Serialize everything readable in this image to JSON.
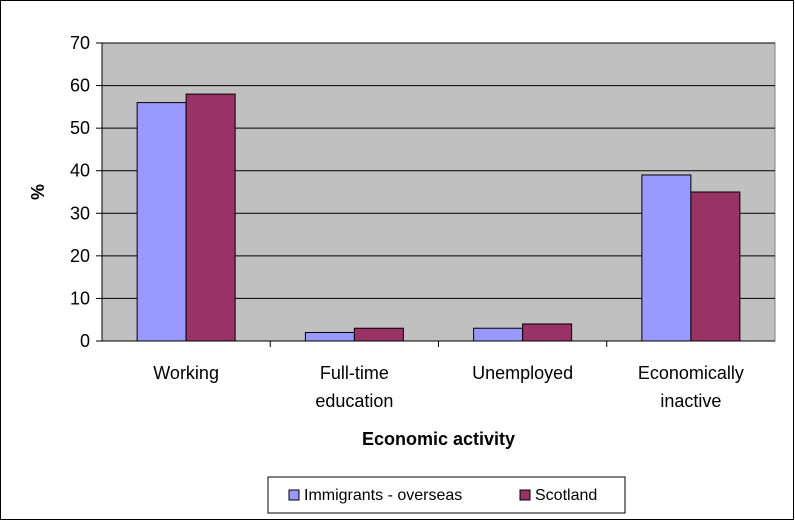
{
  "chart_data": {
    "type": "bar",
    "categories": [
      "Working",
      "Full-time education",
      "Unemployed",
      "Economically inactive"
    ],
    "category_label_lines": [
      [
        "Working"
      ],
      [
        "Full-time",
        "education"
      ],
      [
        "Unemployed"
      ],
      [
        "Economically",
        "inactive"
      ]
    ],
    "series": [
      {
        "name": "Immigrants - overseas",
        "values": [
          56,
          2,
          3,
          39
        ],
        "color": "#9999ff"
      },
      {
        "name": "Scotland",
        "values": [
          58,
          3,
          4,
          35
        ],
        "color": "#993366"
      }
    ],
    "xlabel": "Economic activity",
    "ylabel": "%",
    "ylim": [
      0,
      70
    ],
    "yticks": [
      0,
      10,
      20,
      30,
      40,
      50,
      60,
      70
    ],
    "grid": true,
    "plot_background": "#c0c0c0",
    "legend_position": "bottom"
  }
}
